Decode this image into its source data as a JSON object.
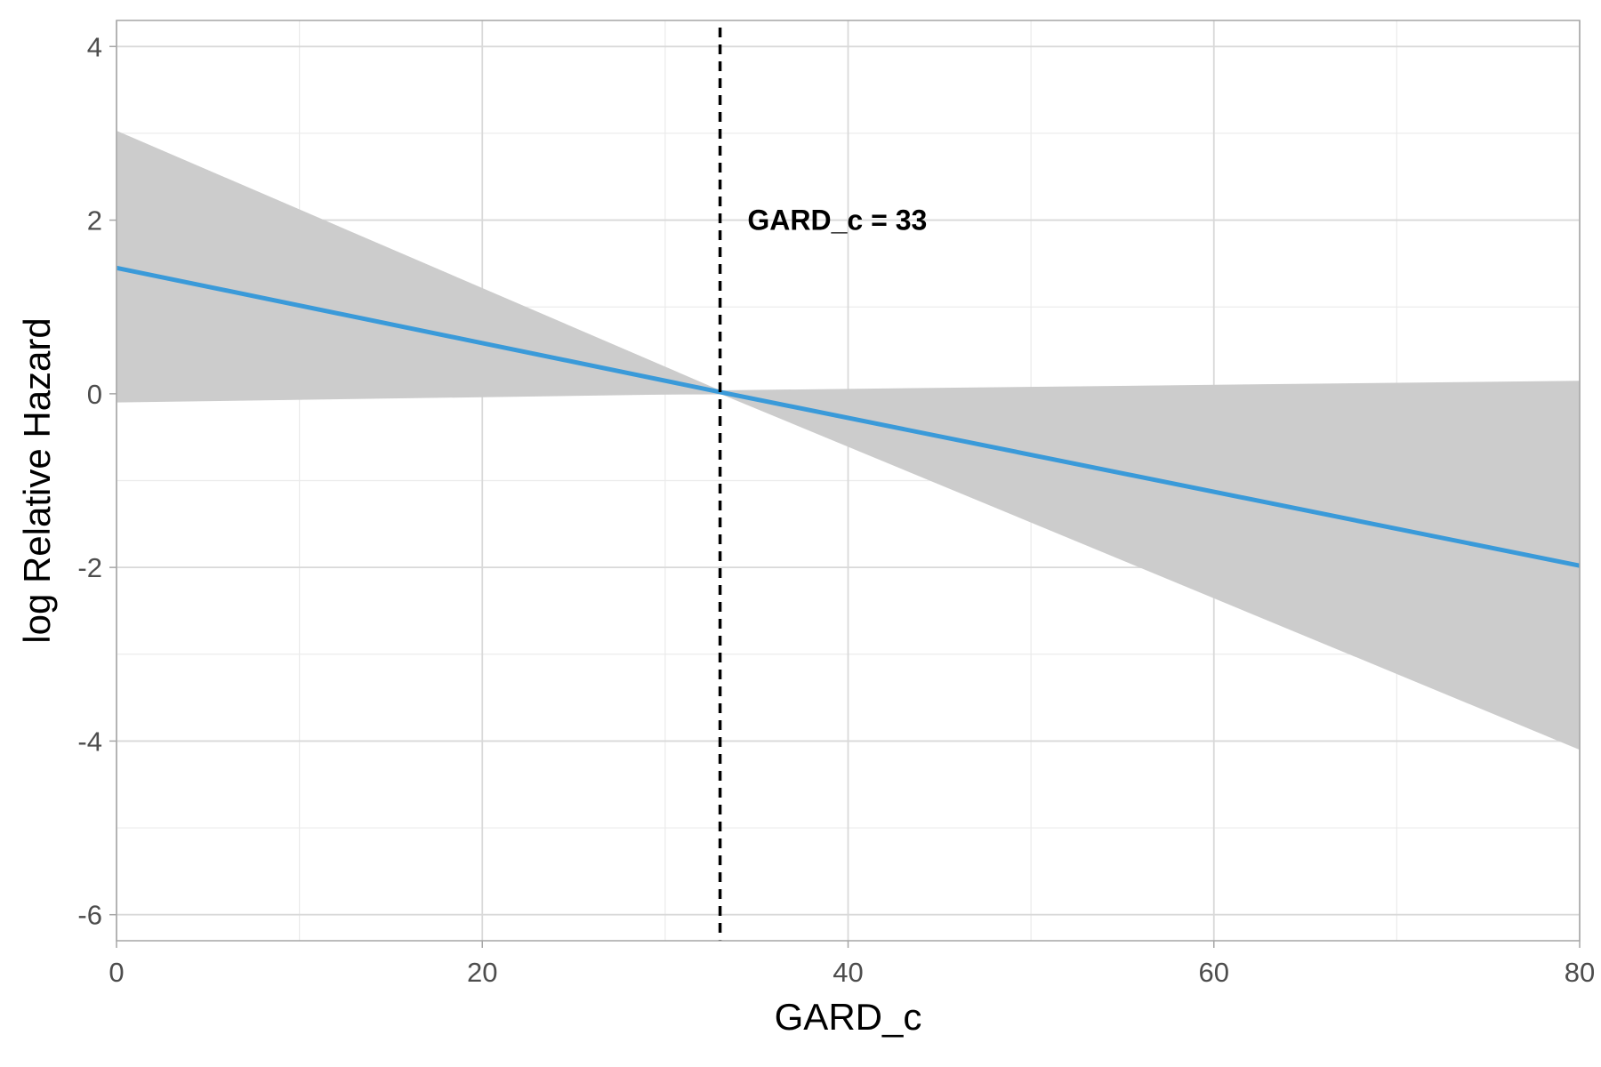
{
  "chart_data": {
    "type": "line",
    "xlabel": "GARD_c",
    "ylabel": "log Relative Hazard",
    "xlim": [
      0,
      80
    ],
    "ylim": [
      -6.3,
      4.3
    ],
    "x_ticks": [
      0,
      20,
      40,
      60,
      80
    ],
    "x_tick_labels": [
      "0",
      "20",
      "40",
      "60",
      "80"
    ],
    "y_ticks": [
      4,
      2,
      0,
      -2,
      -4,
      -6
    ],
    "y_tick_labels": [
      "4",
      "2",
      "0",
      "-2",
      "-4",
      "-6"
    ],
    "grid": true,
    "series": [
      {
        "x": [
          0,
          33,
          80
        ],
        "y": [
          1.45,
          0.02,
          -1.98
        ],
        "color": "#3a9ad9"
      }
    ],
    "ribbon": {
      "x": [
        0,
        33,
        80
      ],
      "lower": [
        -0.1,
        0.0,
        -4.1
      ],
      "upper": [
        3.03,
        0.04,
        0.15
      ],
      "color": "#cccccc"
    },
    "reference_line": {
      "x": 33,
      "style": "dashed",
      "color": "#000000"
    },
    "annotation": {
      "text": "GARD_c = 33",
      "x": 34.5,
      "y": 2.0
    }
  }
}
